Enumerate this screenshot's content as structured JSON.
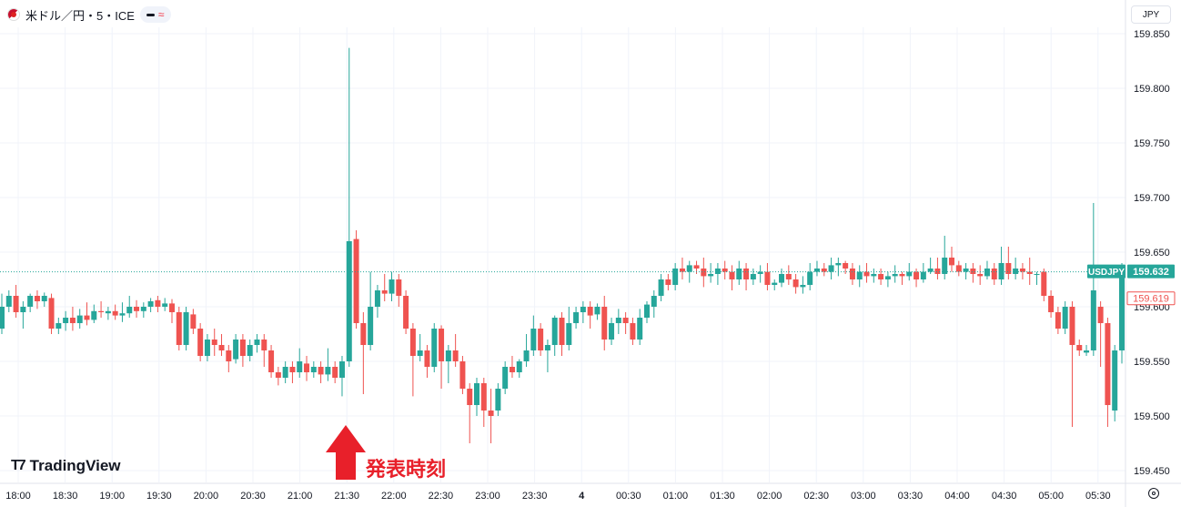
{
  "header": {
    "symbol_title": "米ドル／円・5・ICE",
    "flag_icon": "us-japan-flag-icon",
    "pill_wave": "≈"
  },
  "currency_button": "JPY",
  "logo_text": "TradingView",
  "logo_mark": "T7",
  "annotation": {
    "text": "発表時刻",
    "color": "#e8202a"
  },
  "colors": {
    "up": "#26a69a",
    "down": "#ef5350",
    "grid": "#f0f3fa",
    "axis_text": "#131722"
  },
  "chart_data": {
    "type": "candlestick",
    "symbol": "USDJPY",
    "interval": "5",
    "ylim": [
      159.435,
      159.87
    ],
    "yticks": [
      159.85,
      159.8,
      159.75,
      159.7,
      159.65,
      159.6,
      159.55,
      159.5,
      159.45
    ],
    "ytick_labels": [
      "159.850",
      "159.800",
      "159.750",
      "159.700",
      "159.650",
      "159.600",
      "159.550",
      "159.500",
      "159.450"
    ],
    "xticks": [
      "18:00",
      "18:30",
      "19:00",
      "19:30",
      "20:00",
      "20:30",
      "21:00",
      "21:30",
      "22:00",
      "22:30",
      "23:00",
      "23:30",
      "4",
      "00:30",
      "01:00",
      "01:30",
      "02:00",
      "02:30",
      "03:00",
      "03:30",
      "04:00",
      "04:30",
      "05:00",
      "05:30"
    ],
    "price_label": {
      "name": "USDJPY",
      "value": "159.632",
      "price": 159.632
    },
    "second_label": {
      "value": "159.619",
      "price": 159.619
    },
    "candles": [
      [
        159.58,
        159.6,
        159.612,
        159.575
      ],
      [
        159.6,
        159.61,
        159.615,
        159.595
      ],
      [
        159.61,
        159.595,
        159.62,
        159.59
      ],
      [
        159.595,
        159.6,
        159.605,
        159.58
      ],
      [
        159.6,
        159.61,
        159.612,
        159.595
      ],
      [
        159.61,
        159.605,
        159.615,
        159.598
      ],
      [
        159.605,
        159.61,
        159.613,
        159.6
      ],
      [
        159.608,
        159.58,
        159.612,
        159.575
      ],
      [
        159.58,
        159.585,
        159.59,
        159.575
      ],
      [
        159.585,
        159.59,
        159.596,
        159.578
      ],
      [
        159.59,
        159.585,
        159.6,
        159.578
      ],
      [
        159.585,
        159.592,
        159.598,
        159.58
      ],
      [
        159.592,
        159.588,
        159.604,
        159.583
      ],
      [
        159.588,
        159.596,
        159.602,
        159.585
      ],
      [
        159.596,
        159.595,
        159.605,
        159.59
      ],
      [
        159.594,
        159.596,
        159.6,
        159.588
      ],
      [
        159.596,
        159.592,
        159.602,
        159.588
      ],
      [
        159.592,
        159.594,
        159.604,
        159.586
      ],
      [
        159.594,
        159.6,
        159.61,
        159.59
      ],
      [
        159.6,
        159.596,
        159.606,
        159.59
      ],
      [
        159.596,
        159.6,
        159.604,
        159.59
      ],
      [
        159.6,
        159.605,
        159.608,
        159.595
      ],
      [
        159.606,
        159.6,
        159.61,
        159.595
      ],
      [
        159.6,
        159.603,
        159.608,
        159.596
      ],
      [
        159.603,
        159.595,
        159.607,
        159.585
      ],
      [
        159.595,
        159.565,
        159.6,
        159.56
      ],
      [
        159.565,
        159.595,
        159.6,
        159.56
      ],
      [
        159.593,
        159.58,
        159.598,
        159.575
      ],
      [
        159.58,
        159.555,
        159.585,
        159.55
      ],
      [
        159.555,
        159.57,
        159.575,
        159.55
      ],
      [
        159.57,
        159.565,
        159.58,
        159.555
      ],
      [
        159.565,
        159.56,
        159.575,
        159.555
      ],
      [
        159.56,
        159.55,
        159.565,
        159.54
      ],
      [
        159.552,
        159.57,
        159.575,
        159.548
      ],
      [
        159.57,
        159.555,
        159.575,
        159.545
      ],
      [
        159.555,
        159.565,
        159.57,
        159.55
      ],
      [
        159.565,
        159.57,
        159.575,
        159.558
      ],
      [
        159.57,
        159.56,
        159.575,
        159.545
      ],
      [
        159.56,
        159.54,
        159.565,
        159.535
      ],
      [
        159.54,
        159.535,
        159.545,
        159.528
      ],
      [
        159.535,
        159.545,
        159.55,
        159.53
      ],
      [
        159.545,
        159.54,
        159.55,
        159.53
      ],
      [
        159.54,
        159.55,
        159.562,
        159.535
      ],
      [
        159.548,
        159.54,
        159.555,
        159.532
      ],
      [
        159.54,
        159.545,
        159.55,
        159.535
      ],
      [
        159.545,
        159.538,
        159.55,
        159.53
      ],
      [
        159.538,
        159.545,
        159.562,
        159.532
      ],
      [
        159.545,
        159.535,
        159.55,
        159.53
      ],
      [
        159.535,
        159.55,
        159.555,
        159.518
      ],
      [
        159.55,
        159.66,
        159.837,
        159.545
      ],
      [
        159.662,
        159.585,
        159.67,
        159.58
      ],
      [
        159.585,
        159.565,
        159.595,
        159.52
      ],
      [
        159.565,
        159.6,
        159.632,
        159.56
      ],
      [
        159.6,
        159.615,
        159.62,
        159.59
      ],
      [
        159.615,
        159.612,
        159.63,
        159.605
      ],
      [
        159.612,
        159.625,
        159.632,
        159.605
      ],
      [
        159.625,
        159.61,
        159.63,
        159.6
      ],
      [
        159.61,
        159.58,
        159.615,
        159.575
      ],
      [
        159.58,
        159.555,
        159.585,
        159.518
      ],
      [
        159.555,
        159.56,
        159.575,
        159.55
      ],
      [
        159.56,
        159.545,
        159.565,
        159.535
      ],
      [
        159.545,
        159.58,
        159.585,
        159.54
      ],
      [
        159.58,
        159.55,
        159.583,
        159.525
      ],
      [
        159.55,
        159.56,
        159.565,
        159.53
      ],
      [
        159.56,
        159.55,
        159.575,
        159.545
      ],
      [
        159.55,
        159.525,
        159.555,
        159.52
      ],
      [
        159.525,
        159.51,
        159.53,
        159.475
      ],
      [
        159.51,
        159.53,
        159.535,
        159.5
      ],
      [
        159.53,
        159.505,
        159.535,
        159.49
      ],
      [
        159.505,
        159.5,
        159.525,
        159.475
      ],
      [
        159.505,
        159.525,
        159.53,
        159.5
      ],
      [
        159.525,
        159.545,
        159.55,
        159.52
      ],
      [
        159.545,
        159.54,
        159.555,
        159.535
      ],
      [
        159.54,
        159.55,
        159.552,
        159.535
      ],
      [
        159.55,
        159.56,
        159.575,
        159.545
      ],
      [
        159.56,
        159.58,
        159.592,
        159.555
      ],
      [
        159.58,
        159.56,
        159.585,
        159.555
      ],
      [
        159.56,
        159.565,
        159.57,
        159.54
      ],
      [
        159.565,
        159.59,
        159.592,
        159.555
      ],
      [
        159.59,
        159.565,
        159.595,
        159.555
      ],
      [
        159.565,
        159.585,
        159.6,
        159.56
      ],
      [
        159.585,
        159.595,
        159.6,
        159.58
      ],
      [
        159.595,
        159.6,
        159.605,
        159.585
      ],
      [
        159.6,
        159.592,
        159.605,
        159.58
      ],
      [
        159.593,
        159.6,
        159.603,
        159.588
      ],
      [
        159.6,
        159.57,
        159.61,
        159.56
      ],
      [
        159.57,
        159.585,
        159.59,
        159.565
      ],
      [
        159.585,
        159.59,
        159.598,
        159.575
      ],
      [
        159.59,
        159.585,
        159.595,
        159.575
      ],
      [
        159.585,
        159.57,
        159.59,
        159.565
      ],
      [
        159.57,
        159.59,
        159.598,
        159.565
      ],
      [
        159.59,
        159.602,
        159.605,
        159.585
      ],
      [
        159.6,
        159.61,
        159.615,
        159.59
      ],
      [
        159.61,
        159.625,
        159.63,
        159.605
      ],
      [
        159.625,
        159.62,
        159.63,
        159.615
      ],
      [
        159.62,
        159.635,
        159.64,
        159.615
      ],
      [
        159.635,
        159.632,
        159.645,
        159.625
      ],
      [
        159.632,
        159.638,
        159.642,
        159.622
      ],
      [
        159.638,
        159.635,
        159.642,
        159.63
      ],
      [
        159.635,
        159.628,
        159.645,
        159.618
      ],
      [
        159.628,
        159.63,
        159.64,
        159.622
      ],
      [
        159.63,
        159.635,
        159.64,
        159.62
      ],
      [
        159.635,
        159.632,
        159.642,
        159.625
      ],
      [
        159.632,
        159.625,
        159.638,
        159.615
      ],
      [
        159.625,
        159.635,
        159.642,
        159.62
      ],
      [
        159.635,
        159.625,
        159.64,
        159.615
      ],
      [
        159.625,
        159.63,
        159.635,
        159.62
      ],
      [
        159.63,
        159.632,
        159.638,
        159.622
      ],
      [
        159.632,
        159.62,
        159.64,
        159.615
      ],
      [
        159.62,
        159.622,
        159.625,
        159.615
      ],
      [
        159.622,
        159.63,
        159.635,
        159.618
      ],
      [
        159.63,
        159.625,
        159.638,
        159.62
      ],
      [
        159.625,
        159.618,
        159.63,
        159.612
      ],
      [
        159.618,
        159.62,
        159.628,
        159.612
      ],
      [
        159.62,
        159.632,
        159.64,
        159.615
      ],
      [
        159.632,
        159.635,
        159.642,
        159.628
      ],
      [
        159.635,
        159.632,
        159.64,
        159.628
      ],
      [
        159.632,
        159.638,
        159.645,
        159.625
      ],
      [
        159.638,
        159.64,
        159.645,
        159.628
      ],
      [
        159.64,
        159.635,
        159.642,
        159.63
      ],
      [
        159.635,
        159.625,
        159.64,
        159.62
      ],
      [
        159.625,
        159.632,
        159.638,
        159.618
      ],
      [
        159.632,
        159.628,
        159.64,
        159.622
      ],
      [
        159.628,
        159.63,
        159.635,
        159.622
      ],
      [
        159.63,
        159.625,
        159.635,
        159.62
      ],
      [
        159.625,
        159.628,
        159.632,
        159.618
      ],
      [
        159.628,
        159.63,
        159.638,
        159.622
      ],
      [
        159.63,
        159.628,
        159.632,
        159.62
      ],
      [
        159.628,
        159.632,
        159.64,
        159.624
      ],
      [
        159.632,
        159.625,
        159.635,
        159.618
      ],
      [
        159.625,
        159.632,
        159.64,
        159.622
      ],
      [
        159.632,
        159.635,
        159.645,
        159.63
      ],
      [
        159.635,
        159.63,
        159.645,
        159.625
      ],
      [
        159.63,
        159.645,
        159.665,
        159.625
      ],
      [
        159.645,
        159.638,
        159.655,
        159.632
      ],
      [
        159.638,
        159.632,
        159.642,
        159.628
      ],
      [
        159.632,
        159.635,
        159.64,
        159.625
      ],
      [
        159.635,
        159.63,
        159.64,
        159.622
      ],
      [
        159.63,
        159.628,
        159.638,
        159.62
      ],
      [
        159.628,
        159.635,
        159.642,
        159.625
      ],
      [
        159.635,
        159.625,
        159.64,
        159.62
      ],
      [
        159.625,
        159.64,
        159.655,
        159.62
      ],
      [
        159.64,
        159.63,
        159.655,
        159.625
      ],
      [
        159.63,
        159.635,
        159.645,
        159.625
      ],
      [
        159.635,
        159.632,
        159.64,
        159.625
      ],
      [
        159.632,
        159.63,
        159.645,
        159.62
      ],
      [
        159.63,
        159.63,
        159.632,
        159.62
      ],
      [
        159.632,
        159.61,
        159.635,
        159.605
      ],
      [
        159.61,
        159.595,
        159.615,
        159.59
      ],
      [
        159.595,
        159.58,
        159.6,
        159.575
      ],
      [
        159.58,
        159.6,
        159.605,
        159.575
      ],
      [
        159.6,
        159.565,
        159.605,
        159.49
      ],
      [
        159.565,
        159.56,
        159.57,
        159.555
      ],
      [
        159.558,
        159.56,
        159.565,
        159.555
      ],
      [
        159.56,
        159.615,
        159.695,
        159.555
      ],
      [
        159.6,
        159.585,
        159.605,
        159.545
      ],
      [
        159.585,
        159.51,
        159.59,
        159.49
      ],
      [
        159.505,
        159.56,
        159.565,
        159.495
      ],
      [
        159.56,
        159.632,
        159.64,
        159.548
      ]
    ]
  }
}
